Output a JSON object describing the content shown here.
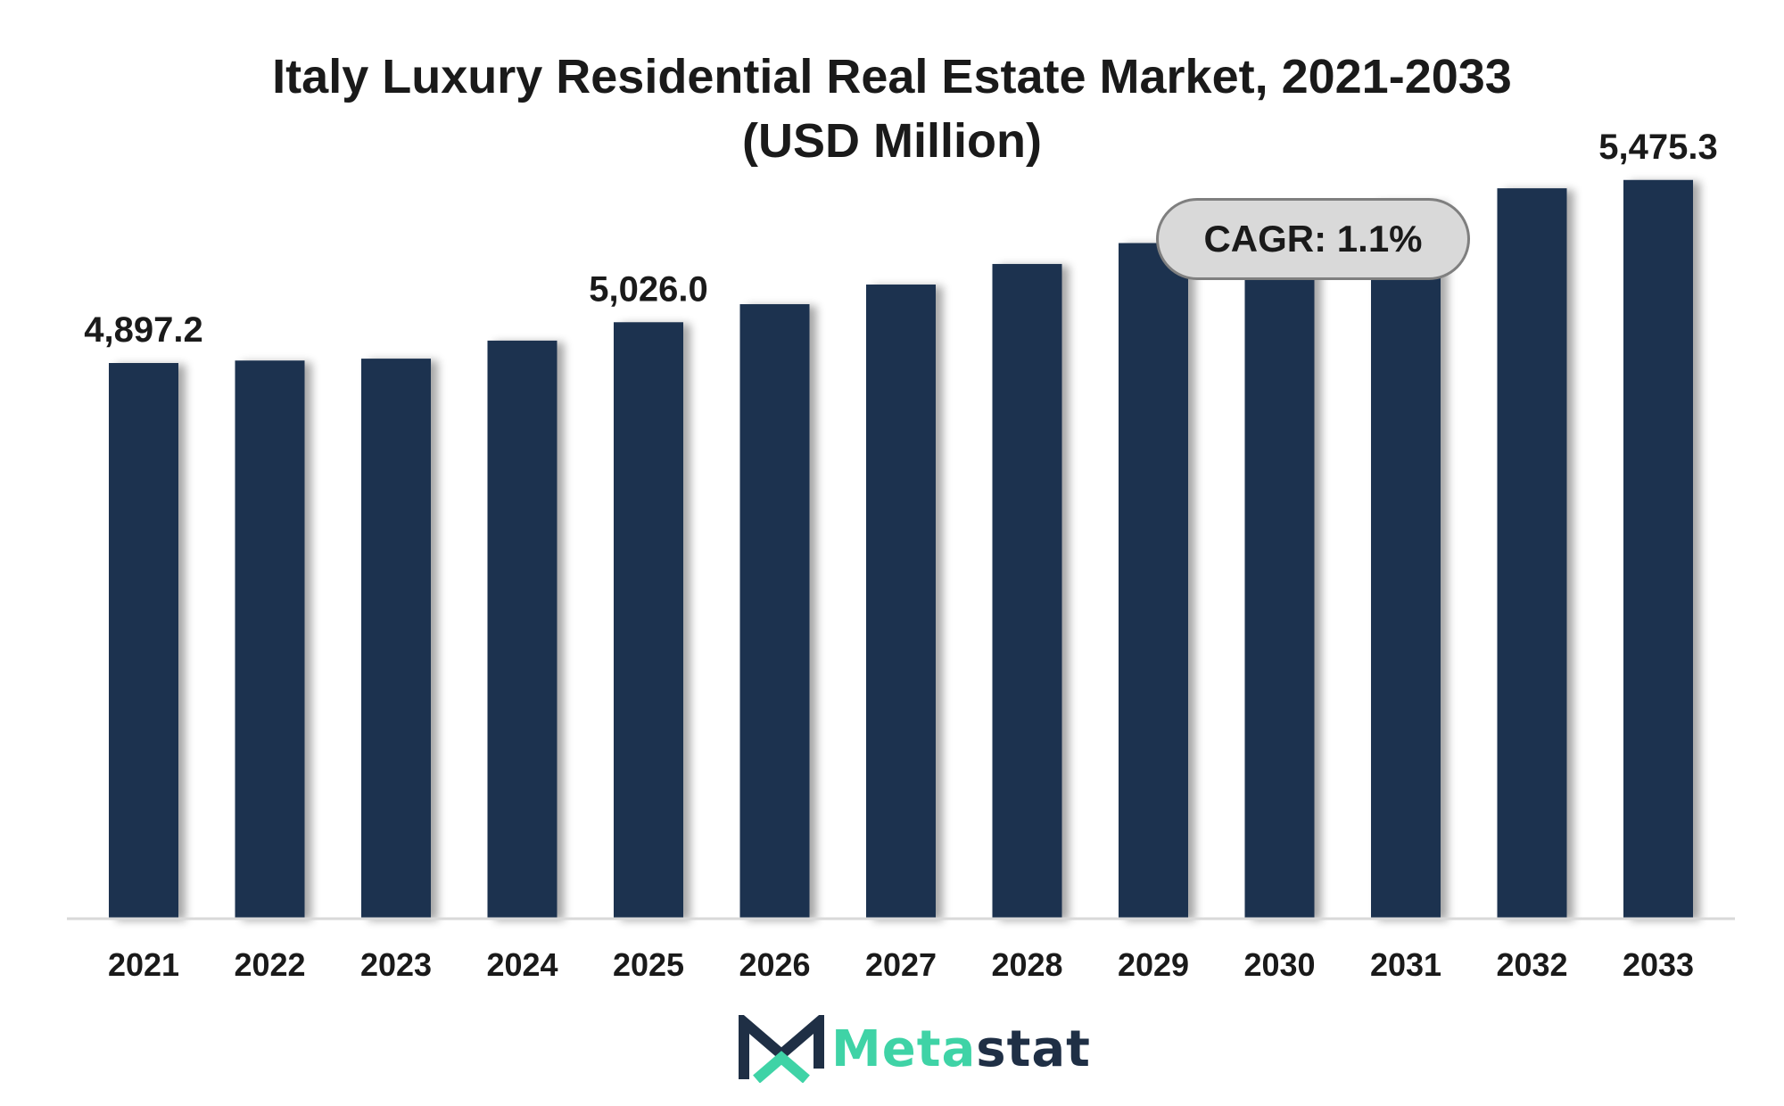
{
  "title_line1": "Italy Luxury Residential Real Estate Market, 2021-2033",
  "title_line2": "(USD Million)",
  "cagr_label": "CAGR: 1.1%",
  "logo": {
    "part1": "Meta",
    "part2": "stat",
    "mark_icon": "metastat-m-logo-icon"
  },
  "colors": {
    "bar": "#1a3050",
    "axis": "#d9d9d9",
    "text": "#1a1a1a",
    "logo_green": "#3fd3a6",
    "logo_navy": "#1f2f45"
  },
  "chart_data": {
    "type": "bar",
    "title": "Italy Luxury Residential Real Estate Market, 2021-2033 (USD Million)",
    "categories": [
      "2021",
      "2022",
      "2023",
      "2024",
      "2025",
      "2026",
      "2027",
      "2028",
      "2029",
      "2030",
      "2031",
      "2032",
      "2033"
    ],
    "values": [
      4897.2,
      4905.0,
      4911.0,
      4968.0,
      5026.0,
      5083.0,
      5145.0,
      5210.0,
      5276.0,
      5344.0,
      5408.0,
      5449.0,
      5475.3
    ],
    "data_labels": {
      "0": "4,897.2",
      "4": "5,026.0",
      "12": "5,475.3"
    },
    "xlabel": "",
    "ylabel": "",
    "y_axis_visible": false,
    "grid": false,
    "legend": "none"
  }
}
